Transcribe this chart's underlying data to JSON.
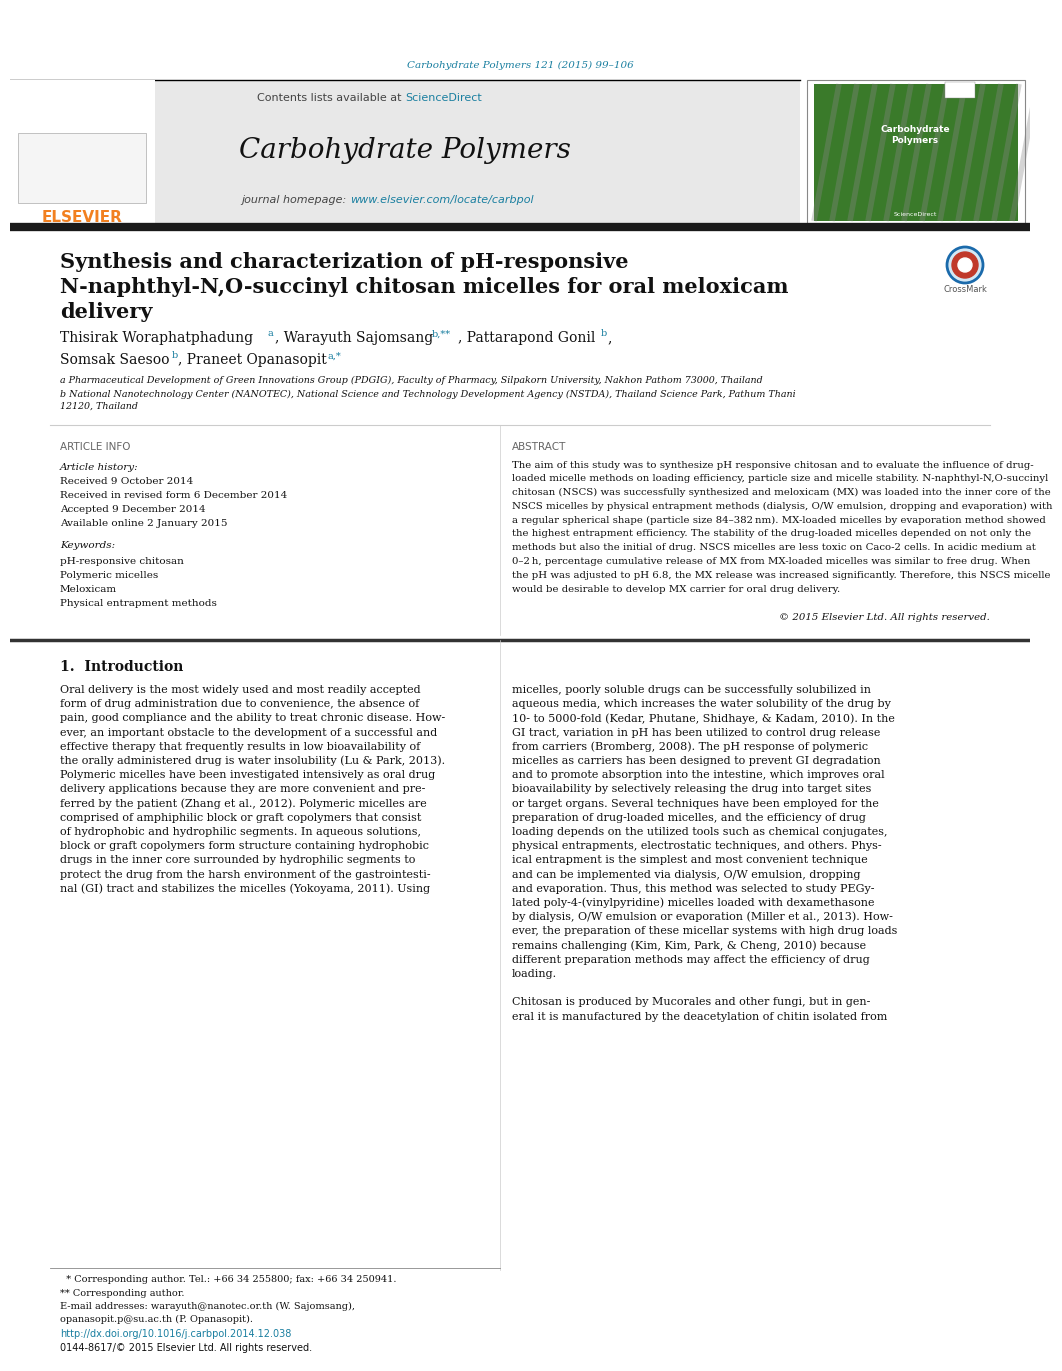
{
  "journal_ref": "Carbohydrate Polymers 121 (2015) 99–106",
  "journal_ref_color": "#1a7fa0",
  "header_bg": "#e8e8e8",
  "contents_text": "Contents lists available at ",
  "sciencedirect_text": "ScienceDirect",
  "sciencedirect_color": "#1a7fa0",
  "journal_name": "Carbohydrate Polymers",
  "homepage_text": "journal homepage: ",
  "homepage_url": "www.elsevier.com/locate/carbpol",
  "homepage_url_color": "#1a7fa0",
  "elsevier_color": "#f28020",
  "affil_a": "a Pharmaceutical Development of Green Innovations Group (PDGIG), Faculty of Pharmacy, Silpakorn University, Nakhon Pathom 73000, Thailand",
  "affil_b": "b National Nanotechnology Center (NANOTEC), National Science and Technology Development Agency (NSTDA), Thailand Science Park, Pathum Thani\n12120, Thailand",
  "article_history_label": "Article history:",
  "received_text": "Received 9 October 2014",
  "revised_text": "Received in revised form 6 December 2014",
  "accepted_text": "Accepted 9 December 2014",
  "available_text": "Available online 2 January 2015",
  "keywords_label": "Keywords:",
  "kw1": "pH-responsive chitosan",
  "kw2": "Polymeric micelles",
  "kw3": "Meloxicam",
  "kw4": "Physical entrapment methods",
  "abstract_title": "ABSTRACT",
  "copyright_text": "© 2015 Elsevier Ltd. All rights reserved.",
  "section1_title": "1.  Introduction",
  "footnote1": "  * Corresponding author. Tel.: +66 34 255800; fax: +66 34 250941.",
  "footnote2": "** Corresponding author.",
  "footnote3a": "E-mail addresses: warayuth@nanotec.or.th (W. Sajomsang),",
  "footnote3b": "opanasopit.p@su.ac.th (P. Opanasopit).",
  "doi_text": "http://dx.doi.org/10.1016/j.carbpol.2014.12.038",
  "issn_text": "0144-8617/© 2015 Elsevier Ltd. All rights reserved.",
  "bg_white": "#ffffff",
  "text_black": "#000000",
  "text_dark": "#1a1a1a",
  "divider_color": "#1a1a1a",
  "section_divider": "#cccccc",
  "abstract_lines": [
    "The aim of this study was to synthesize pH responsive chitosan and to evaluate the influence of drug-",
    "loaded micelle methods on loading efficiency, particle size and micelle stability. N-naphthyl-N,O-succinyl",
    "chitosan (NSCS) was successfully synthesized and meloxicam (MX) was loaded into the inner core of the",
    "NSCS micelles by physical entrapment methods (dialysis, O/W emulsion, dropping and evaporation) with",
    "a regular spherical shape (particle size 84–382 nm). MX-loaded micelles by evaporation method showed",
    "the highest entrapment efficiency. The stability of the drug-loaded micelles depended on not only the",
    "methods but also the initial of drug. NSCS micelles are less toxic on Caco-2 cells. In acidic medium at",
    "0–2 h, percentage cumulative release of MX from MX-loaded micelles was similar to free drug. When",
    "the pH was adjusted to pH 6.8, the MX release was increased significantly. Therefore, this NSCS micelle",
    "would be desirable to develop MX carrier for oral drug delivery."
  ],
  "intro_left_lines": [
    "Oral delivery is the most widely used and most readily accepted",
    "form of drug administration due to convenience, the absence of",
    "pain, good compliance and the ability to treat chronic disease. How-",
    "ever, an important obstacle to the development of a successful and",
    "effective therapy that frequently results in low bioavailability of",
    "the orally administered drug is water insolubility (Lu & Park, 2013).",
    "Polymeric micelles have been investigated intensively as oral drug",
    "delivery applications because they are more convenient and pre-",
    "ferred by the patient (Zhang et al., 2012). Polymeric micelles are",
    "comprised of amphiphilic block or graft copolymers that consist",
    "of hydrophobic and hydrophilic segments. In aqueous solutions,",
    "block or graft copolymers form structure containing hydrophobic",
    "drugs in the inner core surrounded by hydrophilic segments to",
    "protect the drug from the harsh environment of the gastrointesti-",
    "nal (GI) tract and stabilizes the micelles (Yokoyama, 2011). Using"
  ],
  "intro_right_lines": [
    "micelles, poorly soluble drugs can be successfully solubilized in",
    "aqueous media, which increases the water solubility of the drug by",
    "10- to 5000-fold (Kedar, Phutane, Shidhaye, & Kadam, 2010). In the",
    "GI tract, variation in pH has been utilized to control drug release",
    "from carriers (Bromberg, 2008). The pH response of polymeric",
    "micelles as carriers has been designed to prevent GI degradation",
    "and to promote absorption into the intestine, which improves oral",
    "bioavailability by selectively releasing the drug into target sites",
    "or target organs. Several techniques have been employed for the",
    "preparation of drug-loaded micelles, and the efficiency of drug",
    "loading depends on the utilized tools such as chemical conjugates,",
    "physical entrapments, electrostatic techniques, and others. Phys-",
    "ical entrapment is the simplest and most convenient technique",
    "and can be implemented via dialysis, O/W emulsion, dropping",
    "and evaporation. Thus, this method was selected to study PEGy-",
    "lated poly-4-(vinylpyridine) micelles loaded with dexamethasone",
    "by dialysis, O/W emulsion or evaporation (Miller et al., 2013). How-",
    "ever, the preparation of these micellar systems with high drug loads",
    "remains challenging (Kim, Kim, Park, & Cheng, 2010) because",
    "different preparation methods may affect the efficiency of drug",
    "loading.",
    "",
    "Chitosan is produced by Mucorales and other fungi, but in gen-",
    "eral it is manufactured by the deacetylation of chitin isolated from"
  ]
}
